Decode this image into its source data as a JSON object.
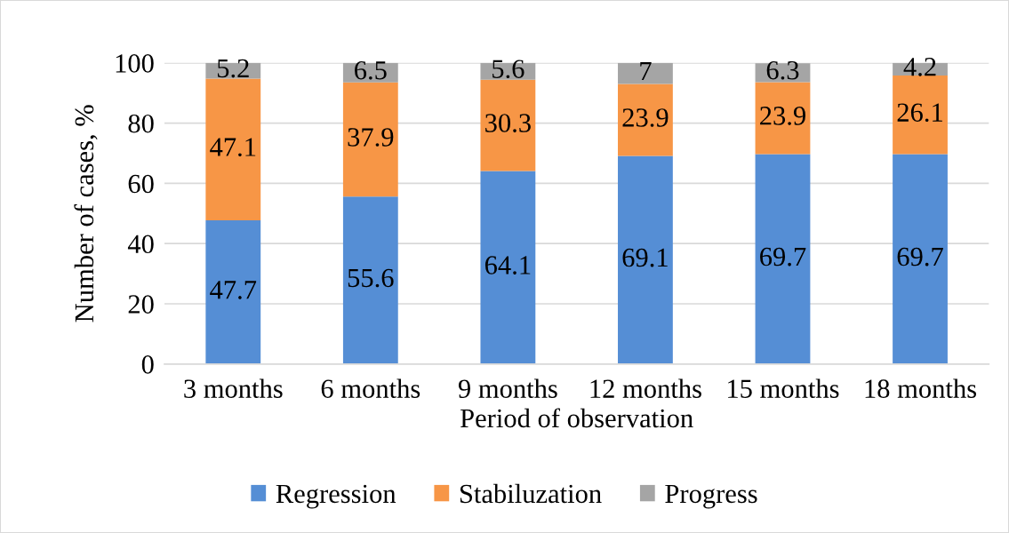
{
  "chart_data": {
    "type": "bar",
    "stacked": true,
    "xlabel": "Period of observation",
    "ylabel": "Number of cases, %",
    "categories": [
      "3 months",
      "6 months",
      "9 months",
      "12 months",
      "15 months",
      "18 months"
    ],
    "series": [
      {
        "name": "Regression",
        "color": "#558ed5",
        "values": [
          47.7,
          55.6,
          64.1,
          69.1,
          69.7,
          69.7
        ]
      },
      {
        "name": "Stabiluzation",
        "color": "#f79646",
        "values": [
          47.1,
          37.9,
          30.3,
          23.9,
          23.9,
          26.1
        ]
      },
      {
        "name": "Progress",
        "color": "#a5a5a5",
        "values": [
          5.2,
          6.5,
          5.6,
          7,
          6.3,
          4.2
        ]
      }
    ],
    "ylim": [
      0,
      100
    ],
    "yticks": [
      0,
      20,
      40,
      60,
      80,
      100
    ],
    "grid": "y",
    "legend": "bottom",
    "data_labels": true
  }
}
